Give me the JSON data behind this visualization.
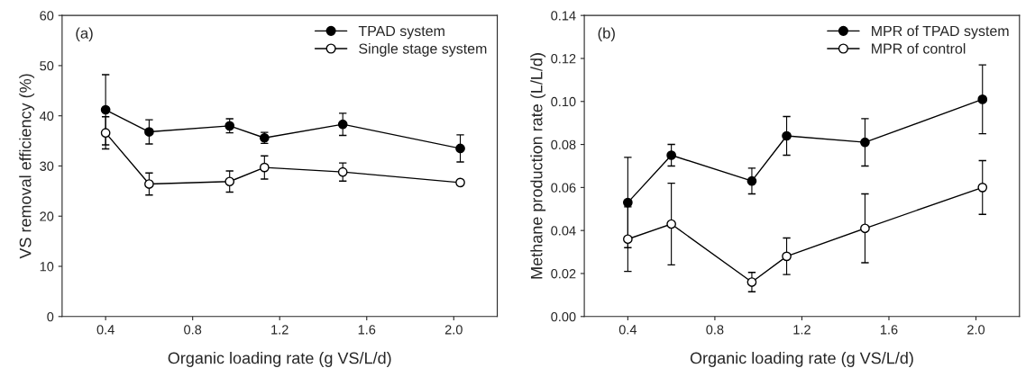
{
  "chart_data": [
    {
      "type": "line",
      "annotations": [
        "(a)"
      ],
      "xlabel": "Organic loading rate (g VS/L/d)",
      "ylabel": "VS removal efficiency (%)",
      "marker": "circle",
      "legend": "top right",
      "grid": false,
      "xlim": [
        0.2,
        2.2
      ],
      "xticks": [
        0.4,
        0.8,
        1.2,
        1.6,
        {
          "value": 2.0,
          "label": "2.0"
        }
      ],
      "ylim": [
        0,
        60
      ],
      "yticks": [
        0,
        10,
        20,
        30,
        40,
        50,
        60
      ],
      "series": [
        {
          "name": "TPAD system",
          "color": "#000000",
          "x": [
            0.4,
            0.6,
            0.97,
            1.13,
            1.49,
            2.03
          ],
          "values": [
            41.2,
            36.8,
            38.0,
            35.6,
            38.3,
            33.5
          ],
          "errors": [
            7,
            2.4,
            1.4,
            1.1,
            2.2,
            2.7
          ]
        },
        {
          "name": "Single stage system",
          "color": "#000000",
          "x": [
            0.4,
            0.6,
            0.97,
            1.13,
            1.49,
            2.03
          ],
          "values": [
            36.6,
            26.4,
            26.9,
            29.7,
            28.8,
            26.7
          ],
          "errors": [
            3.2,
            2.2,
            2.1,
            2.3,
            1.8,
            null
          ]
        }
      ]
    },
    {
      "type": "line",
      "annotations": [
        "(b)"
      ],
      "xlabel": "Organic loading rate (g VS/L/d)",
      "ylabel": "Methane production rate (L/L/d)",
      "marker": "circle",
      "legend": "top right",
      "grid": false,
      "xlim": [
        0.2,
        2.2
      ],
      "xticks": [
        0.4,
        0.8,
        1.2,
        1.6,
        {
          "value": 2.0,
          "label": "2.0"
        }
      ],
      "ylim": [
        0,
        0.14
      ],
      "yticks": [
        {
          "value": 0,
          "label": "0.00"
        },
        {
          "value": 0.02,
          "label": "0.02"
        },
        {
          "value": 0.04,
          "label": "0.04"
        },
        {
          "value": 0.06,
          "label": "0.06"
        },
        {
          "value": 0.08,
          "label": "0.08"
        },
        {
          "value": 0.1,
          "label": "0.10"
        },
        {
          "value": 0.12,
          "label": "0.12"
        },
        {
          "value": 0.14,
          "label": "0.14"
        }
      ],
      "series": [
        {
          "name": "MPR of TPAD system",
          "color": "#000000",
          "x": [
            0.4,
            0.6,
            0.97,
            1.13,
            1.49,
            2.03
          ],
          "values": [
            0.053,
            0.075,
            0.063,
            0.084,
            0.081,
            0.101
          ],
          "errors": [
            0.021,
            0.005,
            0.006,
            0.009,
            0.011,
            0.016
          ]
        },
        {
          "name": "MPR of control",
          "color": "#000000",
          "x": [
            0.4,
            0.6,
            0.97,
            1.13,
            1.49,
            2.03
          ],
          "values": [
            0.036,
            0.043,
            0.016,
            0.028,
            0.041,
            0.06
          ],
          "errors": [
            0.015,
            0.019,
            0.0045,
            0.0085,
            0.016,
            0.0125
          ]
        }
      ]
    }
  ]
}
